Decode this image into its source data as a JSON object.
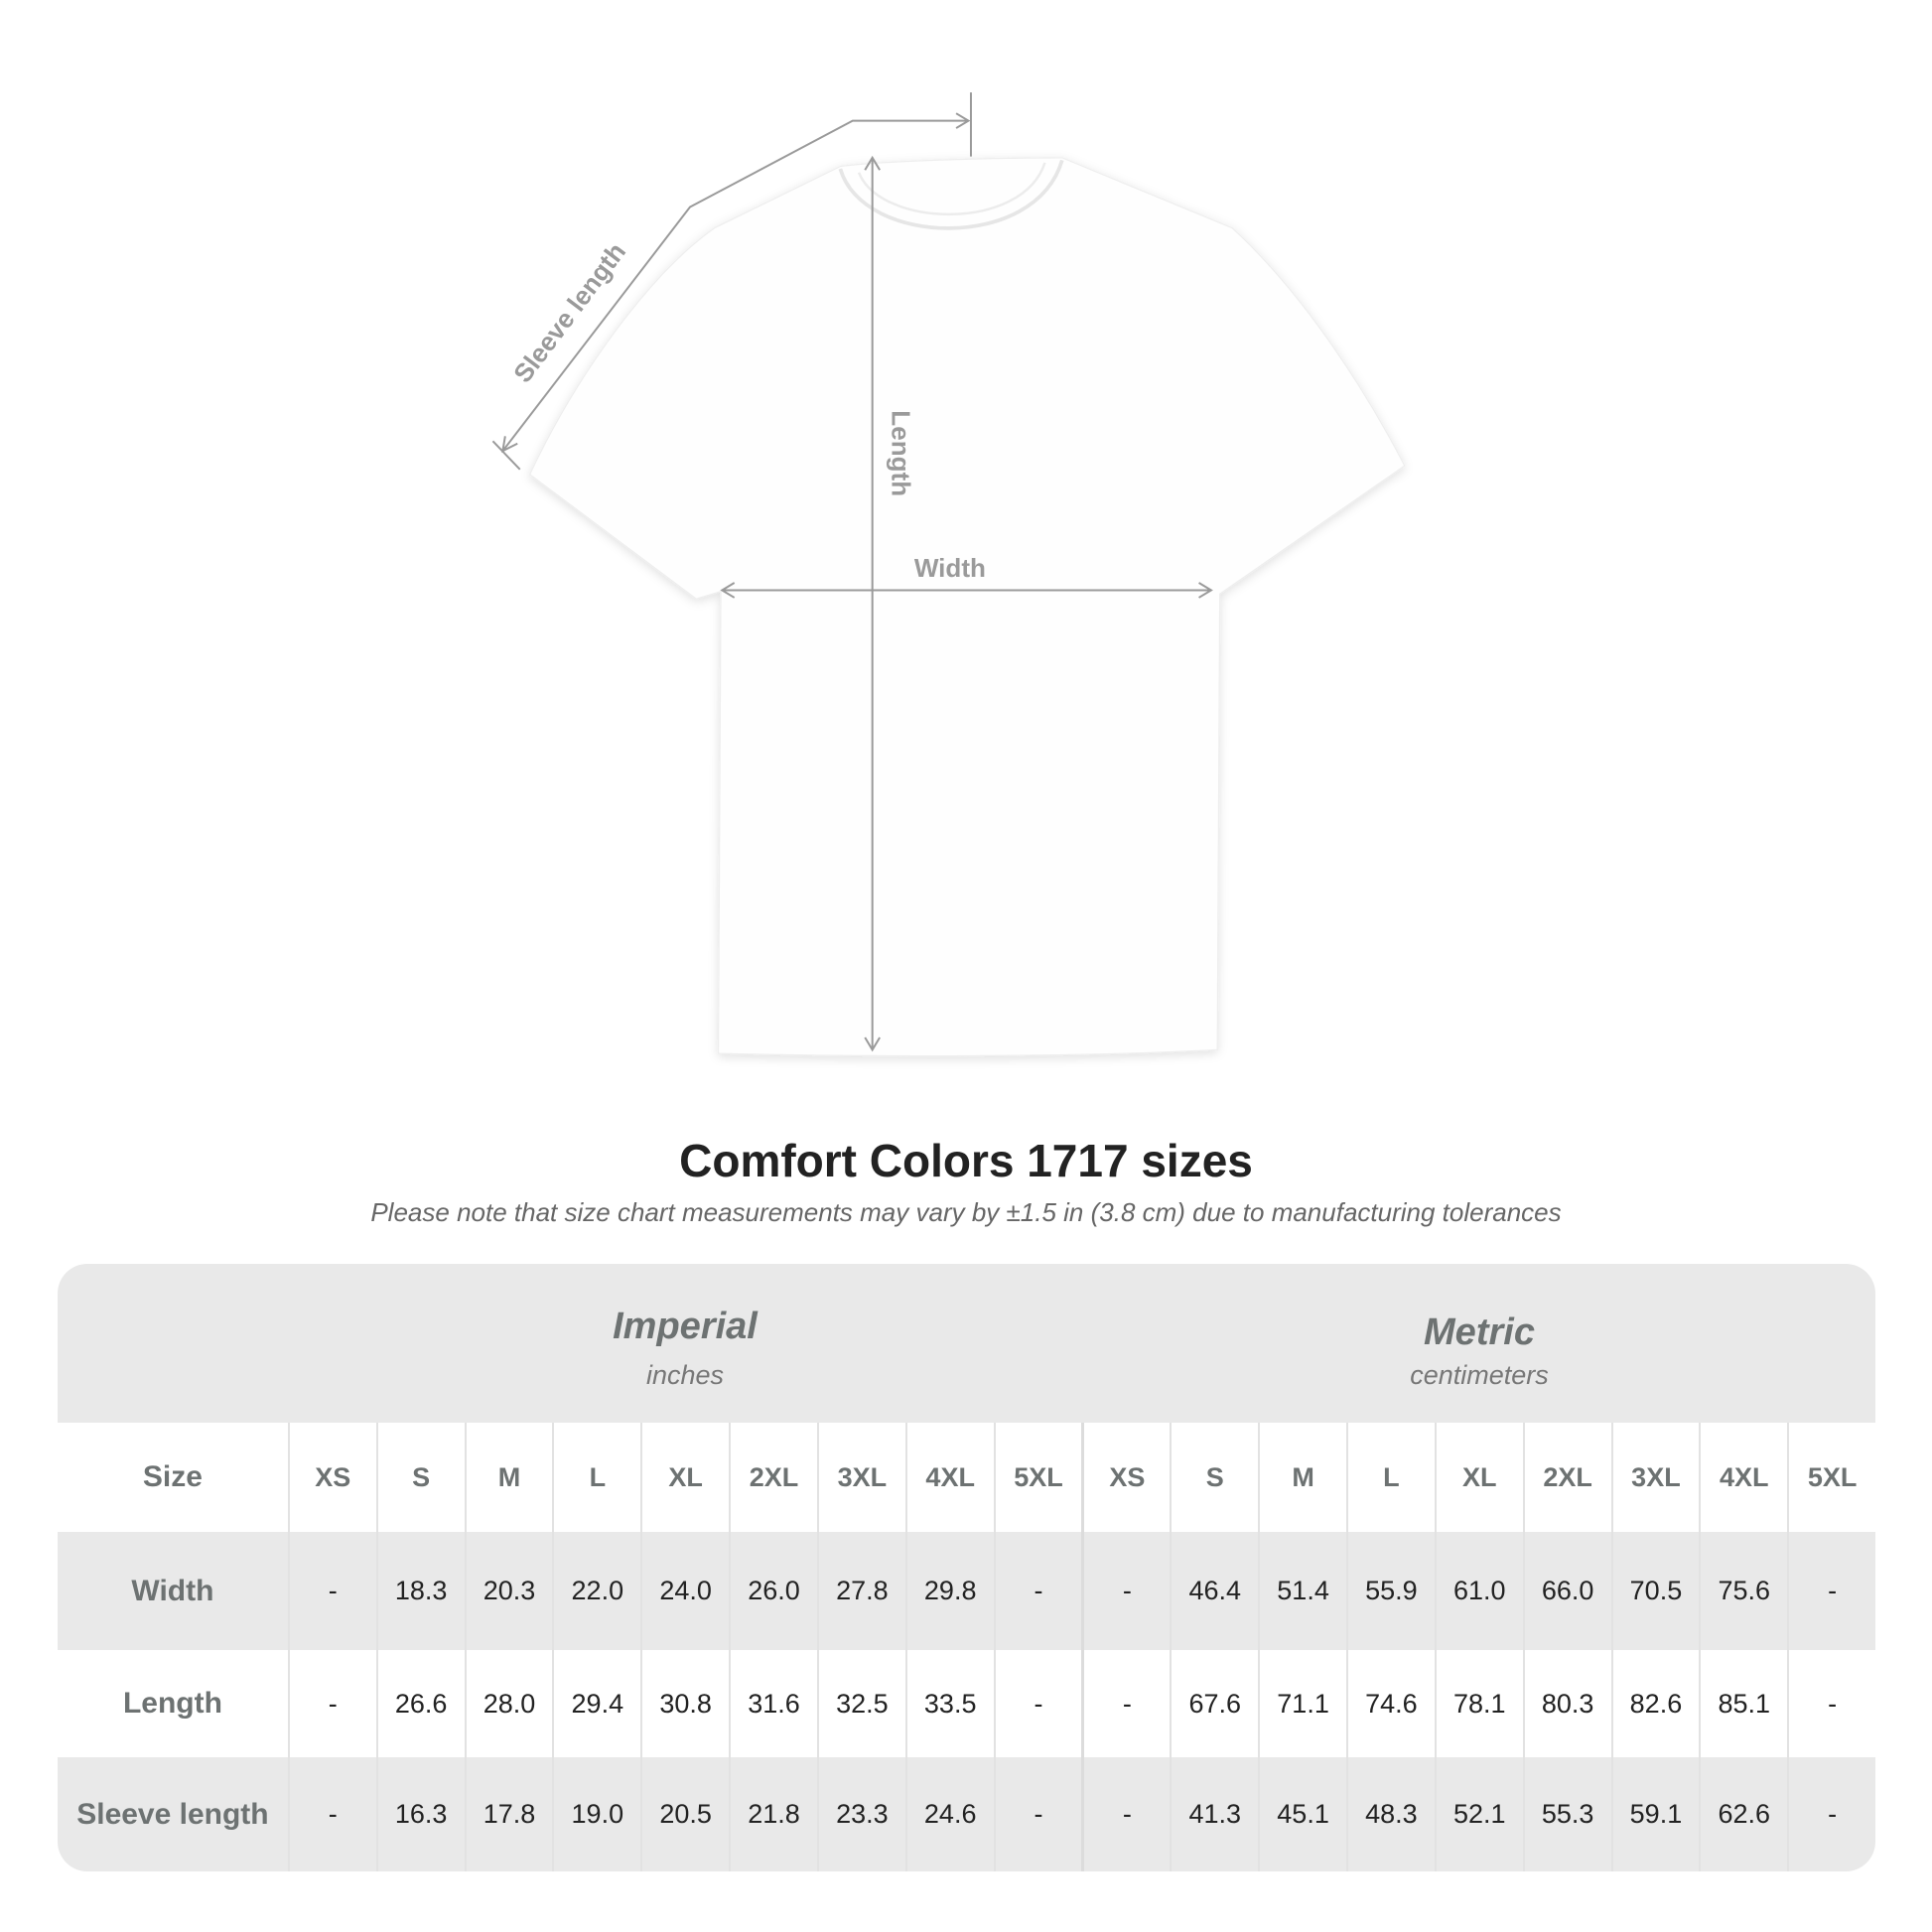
{
  "diagram": {
    "labels": {
      "sleeve": "Sleeve length",
      "length": "Length",
      "width": "Width"
    },
    "line_color": "#9a9a9a",
    "shirt_color": "#ffffff"
  },
  "title": "Comfort Colors 1717 sizes",
  "subtitle": "Please note that size chart measurements may vary by ±1.5 in (3.8 cm) due to manufacturing tolerances",
  "table": {
    "imperial": {
      "name": "Imperial",
      "unit": "inches"
    },
    "metric": {
      "name": "Metric",
      "unit": "centimeters"
    },
    "size_label": "Size",
    "sizes": [
      "XS",
      "S",
      "M",
      "L",
      "XL",
      "2XL",
      "3XL",
      "4XL",
      "5XL"
    ],
    "rows": [
      {
        "label": "Width",
        "imperial": [
          "-",
          "18.3",
          "20.3",
          "22.0",
          "24.0",
          "26.0",
          "27.8",
          "29.8",
          "-"
        ],
        "metric": [
          "-",
          "46.4",
          "51.4",
          "55.9",
          "61.0",
          "66.0",
          "70.5",
          "75.6",
          "-"
        ]
      },
      {
        "label": "Length",
        "imperial": [
          "-",
          "26.6",
          "28.0",
          "29.4",
          "30.8",
          "31.6",
          "32.5",
          "33.5",
          "-"
        ],
        "metric": [
          "-",
          "67.6",
          "71.1",
          "74.6",
          "78.1",
          "80.3",
          "82.6",
          "85.1",
          "-"
        ]
      },
      {
        "label": "Sleeve length",
        "imperial": [
          "-",
          "16.3",
          "17.8",
          "19.0",
          "20.5",
          "21.8",
          "23.3",
          "24.6",
          "-"
        ],
        "metric": [
          "-",
          "41.3",
          "45.1",
          "48.3",
          "52.1",
          "55.3",
          "59.1",
          "62.6",
          "-"
        ]
      }
    ]
  }
}
